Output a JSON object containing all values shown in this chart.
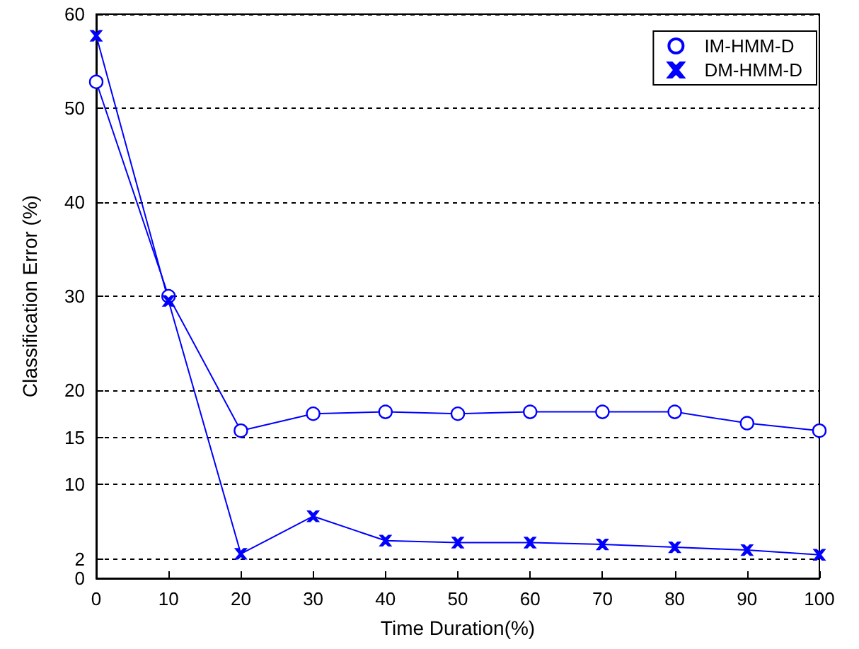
{
  "chart_data": {
    "type": "line",
    "xlabel": "Time Duration(%)",
    "ylabel": "Classification Error (%)",
    "x": [
      0,
      10,
      20,
      30,
      40,
      50,
      60,
      70,
      80,
      90,
      100
    ],
    "series": [
      {
        "name": "IM-HMM-D",
        "color": "#0000ff",
        "marker": "circle",
        "values": [
          52.8,
          30,
          15.7,
          17.5,
          17.7,
          17.5,
          17.7,
          17.7,
          17.7,
          16.5,
          15.7
        ]
      },
      {
        "name": "DM-HMM-D",
        "color": "#0000ff",
        "marker": "cross",
        "values": [
          57.7,
          29.5,
          2.6,
          6.6,
          4.0,
          3.8,
          3.8,
          3.6,
          3.3,
          3.0,
          2.5
        ]
      }
    ],
    "xlim": [
      0,
      100
    ],
    "xticks": [
      0,
      10,
      20,
      30,
      40,
      50,
      60,
      70,
      80,
      90,
      100
    ],
    "ylim": [
      0,
      60
    ],
    "yticks": [
      0,
      2,
      10,
      15,
      20,
      30,
      40,
      50,
      60
    ],
    "grid": "y",
    "legend": "top right",
    "line_style": "solid"
  }
}
